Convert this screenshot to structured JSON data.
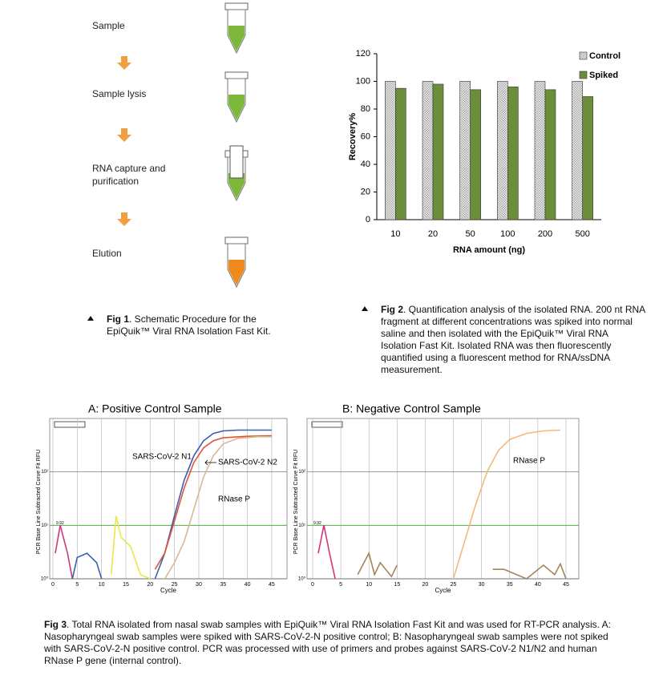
{
  "fig1": {
    "steps": [
      "Sample",
      "Sample lysis",
      "RNA capture and purification",
      "Elution"
    ],
    "caption_label": "Fig 1",
    "caption_text": ". Schematic Procedure for the EpiQuik™ Viral RNA Isolation Fast Kit."
  },
  "fig2": {
    "caption_label": "Fig 2",
    "caption_text": ". Quantification analysis of the isolated RNA. 200 nt RNA fragment at different concentrations was spiked into normal saline and then isolated with the EpiQuik™ Viral RNA Isolation Fast Kit. Isolated RNA was then fluorescently quantified using a fluorescent method for RNA/ssDNA measurement.",
    "chart_data": {
      "type": "bar",
      "x_label": "RNA amount (ng)",
      "y_label": "Recovery%",
      "categories": [
        "10",
        "20",
        "50",
        "100",
        "200",
        "500"
      ],
      "series": [
        {
          "name": "Control",
          "color": "#d8d8d8",
          "values": [
            100,
            100,
            100,
            100,
            100,
            100
          ]
        },
        {
          "name": "Spiked",
          "color": "#6b8e3a",
          "values": [
            95,
            98,
            94,
            96,
            94,
            89
          ]
        }
      ],
      "ylim": [
        0,
        120
      ],
      "yticks": [
        0,
        20,
        40,
        60,
        80,
        100,
        120
      ],
      "legend": "top-right"
    }
  },
  "fig3": {
    "caption_label": "Fig 3",
    "caption_text": ". Total RNA isolated from nasal swab samples with EpiQuik™ Viral RNA Isolation Fast Kit and was used for RT-PCR analysis. A: Nasopharyngeal swab samples were spiked with SARS-CoV-2-N positive control; B: Nasopharyngeal swab samples were not spiked with SARS-CoV-2-N positive control. PCR was processed with use of primers and probes against SARS-CoV-2 N1/N2 and human RNase P gene (internal control).",
    "chart_data": [
      {
        "type": "line",
        "title": "A: Positive Control Sample",
        "x_label": "Cycle",
        "y_label": "PCR Base Line Subtracted Curve Fit RFU",
        "log_y": true,
        "xlim": [
          0,
          46
        ],
        "ylim": [
          1,
          750
        ],
        "xticks": [
          0,
          5,
          10,
          15,
          20,
          25,
          30,
          35,
          40,
          45
        ],
        "yticks": [
          {
            "value": 1,
            "label": "10⁰"
          },
          {
            "value": 10,
            "label": "10¹"
          },
          {
            "value": 100,
            "label": "10²"
          }
        ],
        "threshold": 9.92,
        "threshold_label": "9.92",
        "annotations": [
          "SARS-CoV-2 N1",
          "SARS-CoV-2 N2",
          "RNase P"
        ],
        "series": [
          {
            "color": "#3a5fb0",
            "x": [
              21,
              23,
              25,
              27,
              29,
              31,
              33,
              35,
              38,
              45
            ],
            "values": [
              1,
              3,
              15,
              70,
              200,
              380,
              520,
              580,
              600,
              600
            ]
          },
          {
            "color": "#e0533a",
            "x": [
              21,
              23,
              25,
              27,
              29,
              31,
              33,
              35,
              40,
              45
            ],
            "values": [
              1.5,
              3,
              12,
              50,
              150,
              280,
              380,
              430,
              460,
              470
            ]
          },
          {
            "color": "#d8b98e",
            "x": [
              23,
              25,
              27,
              29,
              31,
              33,
              35,
              38,
              42,
              45
            ],
            "values": [
              1,
              2,
              5,
              20,
              80,
              200,
              330,
              420,
              450,
              450
            ]
          },
          {
            "color": "#d6337a",
            "x": [
              0.5,
              1.5,
              3,
              4
            ],
            "values": [
              3,
              10,
              3,
              1
            ]
          },
          {
            "color": "#3a5fb0",
            "x": [
              4,
              5,
              7,
              9,
              10
            ],
            "values": [
              1,
              2.5,
              3,
              2,
              1
            ]
          },
          {
            "color": "#e8e84a",
            "x": [
              12,
              13,
              14,
              16,
              18,
              20
            ],
            "values": [
              1.2,
              15,
              6,
              4,
              1.2,
              1
            ]
          }
        ]
      },
      {
        "type": "line",
        "title": "B: Negative Control Sample",
        "x_label": "Cycle",
        "y_label": "PCR Base Line Subtracted Curve Fit RFU",
        "log_y": true,
        "xlim": [
          0,
          46
        ],
        "ylim": [
          1,
          750
        ],
        "xticks": [
          0,
          5,
          10,
          15,
          20,
          25,
          30,
          35,
          40,
          45
        ],
        "yticks": [
          {
            "value": 1,
            "label": "10⁰"
          },
          {
            "value": 10,
            "label": "10¹"
          },
          {
            "value": 100,
            "label": "10²"
          }
        ],
        "threshold": 9.92,
        "threshold_label": "9.92",
        "annotations": [
          "RNase P"
        ],
        "series": [
          {
            "color": "#f2b978",
            "x": [
              25,
              27,
              29,
              31,
              33,
              35,
              38,
              41,
              44
            ],
            "values": [
              1,
              5,
              25,
              100,
              250,
              400,
              520,
              580,
              600
            ]
          },
          {
            "color": "#d6337a",
            "x": [
              1,
              2,
              3,
              4
            ],
            "values": [
              3,
              10,
              3,
              1
            ]
          },
          {
            "color": "#a8835a",
            "x": [
              8,
              10,
              11,
              12,
              14,
              15
            ],
            "values": [
              1.2,
              3,
              1.2,
              2,
              1.1,
              1.8
            ]
          },
          {
            "color": "#a8835a",
            "x": [
              32,
              34,
              38,
              41,
              43,
              44,
              45
            ],
            "values": [
              1.5,
              1.5,
              1,
              1.8,
              1.2,
              1.9,
              1
            ]
          }
        ]
      }
    ]
  }
}
